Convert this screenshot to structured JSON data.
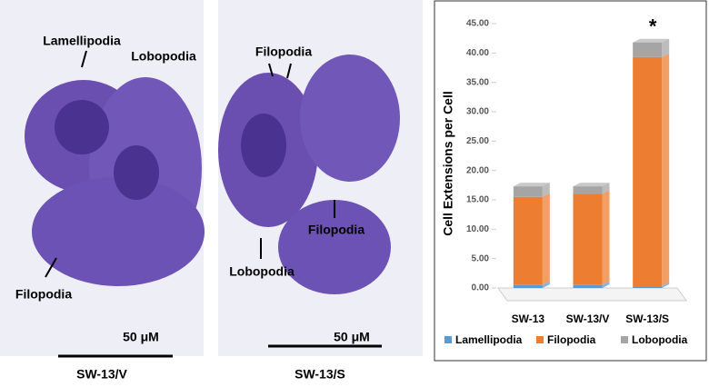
{
  "panels": [
    {
      "labels": [
        "Lamellipodia",
        "Lobopodia",
        "Filopodia"
      ],
      "scale_bar": "50 μM",
      "caption": "SW-13/V"
    },
    {
      "labels": [
        "Filopodia",
        "Filopodia",
        "Lobopodia"
      ],
      "scale_bar": "50 μM",
      "caption": "SW-13/S"
    }
  ],
  "chart_data": {
    "type": "stacked_bar",
    "y_label": "Cell Extensions per Cell",
    "categories": [
      "SW-13",
      "SW-13/V",
      "SW-13/S"
    ],
    "series": [
      {
        "name": "Lamellipodia",
        "color": "#5b9bd5",
        "values": [
          0.5,
          0.5,
          0.3
        ]
      },
      {
        "name": "Filopodia",
        "color": "#ed7d31",
        "values": [
          15,
          15.5,
          39
        ]
      },
      {
        "name": "Lobopodia",
        "color": "#a5a5a5",
        "values": [
          1.8,
          1.3,
          2.5
        ]
      }
    ],
    "annotation": "*",
    "ylim": [
      0,
      45
    ],
    "yticks": [
      {
        "value": 0,
        "label": "0.00"
      },
      {
        "value": 5,
        "label": "5.00"
      },
      {
        "value": 10,
        "label": "10.00"
      },
      {
        "value": 15,
        "label": "15.00"
      },
      {
        "value": 20,
        "label": "20.00"
      },
      {
        "value": 25,
        "label": "25.00"
      },
      {
        "value": 30,
        "label": "30.00"
      },
      {
        "value": 35,
        "label": "35.00"
      },
      {
        "value": 40,
        "label": "40.00"
      },
      {
        "value": 45,
        "label": "45.00"
      }
    ],
    "grid": false,
    "legend": "bottom"
  }
}
